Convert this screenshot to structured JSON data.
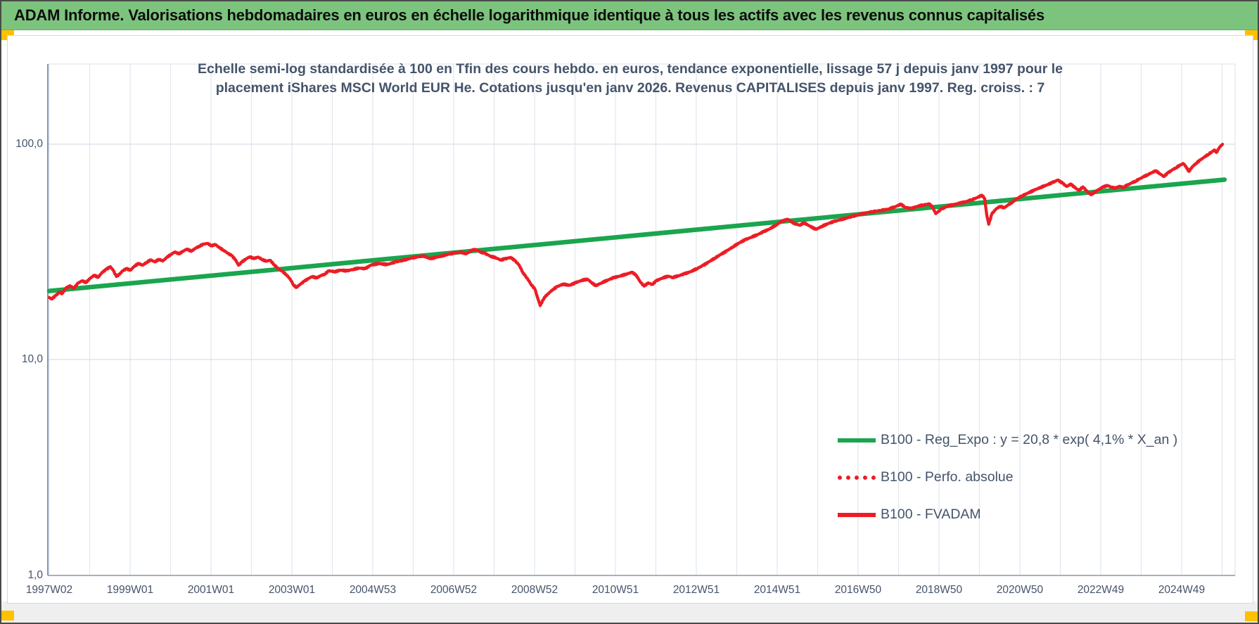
{
  "header": {
    "title": "ADAM Informe. Valorisations hebdomadaires en euros en échelle logarithmique identique à tous les actifs avec les revenus connus capitalisés"
  },
  "colors": {
    "header_bg": "#7cc47d",
    "corner_accent": "#ffc000",
    "regression_green": "#1aa54e",
    "series_red": "#ed1c24",
    "text_blue_gray": "#44546a",
    "gridline": "#e3e7ee",
    "axis_line": "#8496b0"
  },
  "chart_data": {
    "type": "line",
    "title_line1": "Echelle semi-log standardisée à 100 en Tfin des cours hebdo. en euros, tendance exponentielle, lissage 57 j depuis janv 1997 pour le",
    "title_line2": "placement iShares MSCI World EUR He. Cotations jusqu'en janv 2026. Revenus CAPITALISES depuis janv 1997. Reg. croiss. : 7",
    "x_axis": {
      "scale": "linear-weeks",
      "range_years": [
        1997.04,
        2026.35
      ],
      "gridline_every_years": 1,
      "tick_labels": [
        "1997W02",
        "1999W01",
        "2001W01",
        "2003W01",
        "2004W53",
        "2006W52",
        "2008W52",
        "2010W51",
        "2012W51",
        "2014W51",
        "2016W50",
        "2018W50",
        "2020W50",
        "2022W49",
        "2024W49"
      ],
      "tick_label_years": [
        1997.04,
        1999.04,
        2001.04,
        2003.04,
        2005.04,
        2007.04,
        2009.04,
        2011.04,
        2013.04,
        2015.04,
        2017.04,
        2019.04,
        2021.04,
        2023.04,
        2025.04
      ]
    },
    "y_axis": {
      "scale": "log10",
      "range": [
        1.0,
        232
      ],
      "gridline_values": [
        10,
        100
      ],
      "tick_values": [
        100.0,
        10.0,
        1.0
      ],
      "tick_labels": [
        "100,0",
        "10,0",
        "1,0"
      ]
    },
    "legend_position": "inside lower-right",
    "series": [
      {
        "name": "B100 - Reg_Expo : y = 20,8 * exp( 4,1% *  X_an )",
        "type": "regression-line",
        "color": "#1aa54e",
        "dash": "solid",
        "formula": {
          "coefficient": 20.8,
          "annual_growth_rate": 0.041,
          "x_start_year": 1997.04,
          "x_end_year": 2026.1
        }
      },
      {
        "name": "B100 - Perfo. absolue",
        "type": "line",
        "color": "#ed1c24",
        "dash": "dotted",
        "note": "coincides with B100 - FVADAM and is hidden beneath the solid red line"
      },
      {
        "name": "B100 - FVADAM",
        "type": "line",
        "color": "#ed1c24",
        "dash": "solid",
        "end_standardized_to": 100.0,
        "points": [
          [
            1997.04,
            19.4
          ],
          [
            1997.1,
            19.1
          ],
          [
            1997.2,
            19.8
          ],
          [
            1997.3,
            20.6
          ],
          [
            1997.35,
            20.2
          ],
          [
            1997.45,
            21.4
          ],
          [
            1997.55,
            22.0
          ],
          [
            1997.65,
            21.4
          ],
          [
            1997.75,
            22.6
          ],
          [
            1997.85,
            23.2
          ],
          [
            1997.95,
            22.8
          ],
          [
            1998.05,
            23.8
          ],
          [
            1998.15,
            24.6
          ],
          [
            1998.25,
            24.1
          ],
          [
            1998.35,
            25.4
          ],
          [
            1998.45,
            26.2
          ],
          [
            1998.55,
            27.0
          ],
          [
            1998.62,
            26.0
          ],
          [
            1998.7,
            24.3
          ],
          [
            1998.78,
            24.9
          ],
          [
            1998.85,
            25.8
          ],
          [
            1998.95,
            26.4
          ],
          [
            1999.05,
            26.0
          ],
          [
            1999.15,
            27.2
          ],
          [
            1999.25,
            27.9
          ],
          [
            1999.35,
            27.4
          ],
          [
            1999.45,
            28.3
          ],
          [
            1999.55,
            29.0
          ],
          [
            1999.65,
            28.4
          ],
          [
            1999.75,
            29.2
          ],
          [
            1999.85,
            28.7
          ],
          [
            1999.95,
            29.8
          ],
          [
            2000.05,
            30.8
          ],
          [
            2000.15,
            31.6
          ],
          [
            2000.25,
            30.9
          ],
          [
            2000.35,
            31.9
          ],
          [
            2000.45,
            32.6
          ],
          [
            2000.55,
            31.8
          ],
          [
            2000.65,
            32.8
          ],
          [
            2000.75,
            33.6
          ],
          [
            2000.85,
            34.3
          ],
          [
            2000.95,
            34.6
          ],
          [
            2001.05,
            33.8
          ],
          [
            2001.15,
            34.2
          ],
          [
            2001.25,
            33.0
          ],
          [
            2001.35,
            32.2
          ],
          [
            2001.45,
            31.2
          ],
          [
            2001.55,
            30.4
          ],
          [
            2001.65,
            29.0
          ],
          [
            2001.72,
            27.4
          ],
          [
            2001.8,
            28.3
          ],
          [
            2001.9,
            29.3
          ],
          [
            2002.0,
            30.0
          ],
          [
            2002.1,
            29.4
          ],
          [
            2002.2,
            29.9
          ],
          [
            2002.3,
            29.2
          ],
          [
            2002.4,
            28.6
          ],
          [
            2002.5,
            28.9
          ],
          [
            2002.6,
            27.6
          ],
          [
            2002.7,
            26.4
          ],
          [
            2002.8,
            25.7
          ],
          [
            2002.9,
            24.8
          ],
          [
            2003.0,
            23.6
          ],
          [
            2003.08,
            22.2
          ],
          [
            2003.15,
            21.6
          ],
          [
            2003.25,
            22.4
          ],
          [
            2003.35,
            23.1
          ],
          [
            2003.45,
            23.8
          ],
          [
            2003.55,
            24.3
          ],
          [
            2003.65,
            23.9
          ],
          [
            2003.75,
            24.5
          ],
          [
            2003.85,
            24.9
          ],
          [
            2003.95,
            25.8
          ],
          [
            2004.1,
            25.6
          ],
          [
            2004.25,
            26.0
          ],
          [
            2004.4,
            25.8
          ],
          [
            2004.55,
            26.2
          ],
          [
            2004.7,
            26.6
          ],
          [
            2004.85,
            26.4
          ],
          [
            2005.0,
            27.5
          ],
          [
            2005.2,
            27.9
          ],
          [
            2005.4,
            27.6
          ],
          [
            2005.6,
            28.4
          ],
          [
            2005.8,
            28.9
          ],
          [
            2006.0,
            29.6
          ],
          [
            2006.15,
            30.0
          ],
          [
            2006.3,
            30.3
          ],
          [
            2006.45,
            29.4
          ],
          [
            2006.6,
            29.8
          ],
          [
            2006.75,
            30.3
          ],
          [
            2006.9,
            30.8
          ],
          [
            2007.05,
            31.2
          ],
          [
            2007.2,
            31.6
          ],
          [
            2007.35,
            31.0
          ],
          [
            2007.5,
            32.2
          ],
          [
            2007.6,
            32.4
          ],
          [
            2007.7,
            31.6
          ],
          [
            2007.8,
            31.2
          ],
          [
            2007.95,
            30.2
          ],
          [
            2008.1,
            29.6
          ],
          [
            2008.2,
            29.0
          ],
          [
            2008.3,
            29.3
          ],
          [
            2008.45,
            29.8
          ],
          [
            2008.55,
            28.8
          ],
          [
            2008.65,
            27.6
          ],
          [
            2008.75,
            25.4
          ],
          [
            2008.8,
            24.6
          ],
          [
            2008.9,
            23.2
          ],
          [
            2008.95,
            22.4
          ],
          [
            2009.05,
            21.2
          ],
          [
            2009.1,
            19.8
          ],
          [
            2009.18,
            17.8
          ],
          [
            2009.28,
            19.4
          ],
          [
            2009.4,
            20.4
          ],
          [
            2009.5,
            21.2
          ],
          [
            2009.6,
            21.8
          ],
          [
            2009.75,
            22.4
          ],
          [
            2009.9,
            22.1
          ],
          [
            2010.05,
            22.7
          ],
          [
            2010.2,
            23.3
          ],
          [
            2010.35,
            23.6
          ],
          [
            2010.45,
            22.8
          ],
          [
            2010.55,
            22.0
          ],
          [
            2010.7,
            22.7
          ],
          [
            2010.85,
            23.4
          ],
          [
            2011.0,
            24.0
          ],
          [
            2011.15,
            24.4
          ],
          [
            2011.3,
            24.9
          ],
          [
            2011.45,
            25.4
          ],
          [
            2011.55,
            24.7
          ],
          [
            2011.65,
            23.0
          ],
          [
            2011.75,
            21.9
          ],
          [
            2011.85,
            22.7
          ],
          [
            2011.95,
            22.3
          ],
          [
            2012.05,
            23.2
          ],
          [
            2012.2,
            23.9
          ],
          [
            2012.35,
            24.4
          ],
          [
            2012.45,
            24.0
          ],
          [
            2012.6,
            24.5
          ],
          [
            2012.75,
            25.0
          ],
          [
            2012.9,
            25.6
          ],
          [
            2013.05,
            26.4
          ],
          [
            2013.2,
            27.3
          ],
          [
            2013.35,
            28.4
          ],
          [
            2013.5,
            29.6
          ],
          [
            2013.65,
            30.8
          ],
          [
            2013.8,
            32.0
          ],
          [
            2013.95,
            33.4
          ],
          [
            2014.1,
            34.8
          ],
          [
            2014.25,
            36.0
          ],
          [
            2014.4,
            37.0
          ],
          [
            2014.55,
            38.0
          ],
          [
            2014.7,
            39.2
          ],
          [
            2014.85,
            40.4
          ],
          [
            2015.0,
            42.0
          ],
          [
            2015.15,
            43.8
          ],
          [
            2015.3,
            44.8
          ],
          [
            2015.45,
            43.0
          ],
          [
            2015.6,
            42.0
          ],
          [
            2015.7,
            43.2
          ],
          [
            2015.85,
            41.6
          ],
          [
            2016.0,
            40.2
          ],
          [
            2016.15,
            41.6
          ],
          [
            2016.3,
            42.8
          ],
          [
            2016.45,
            43.8
          ],
          [
            2016.6,
            44.6
          ],
          [
            2016.75,
            45.4
          ],
          [
            2016.9,
            46.2
          ],
          [
            2017.05,
            47.0
          ],
          [
            2017.2,
            47.8
          ],
          [
            2017.4,
            48.6
          ],
          [
            2017.6,
            49.2
          ],
          [
            2017.8,
            50.0
          ],
          [
            2017.95,
            51.2
          ],
          [
            2018.1,
            52.6
          ],
          [
            2018.2,
            51.0
          ],
          [
            2018.35,
            50.2
          ],
          [
            2018.5,
            51.4
          ],
          [
            2018.65,
            52.2
          ],
          [
            2018.8,
            52.8
          ],
          [
            2018.88,
            51.0
          ],
          [
            2018.96,
            47.6
          ],
          [
            2019.1,
            50.0
          ],
          [
            2019.25,
            51.6
          ],
          [
            2019.4,
            52.4
          ],
          [
            2019.55,
            53.2
          ],
          [
            2019.7,
            54.0
          ],
          [
            2019.85,
            55.2
          ],
          [
            2020.0,
            56.6
          ],
          [
            2020.1,
            58.0
          ],
          [
            2020.17,
            56.0
          ],
          [
            2020.22,
            47.0
          ],
          [
            2020.27,
            42.5
          ],
          [
            2020.35,
            47.5
          ],
          [
            2020.45,
            50.0
          ],
          [
            2020.55,
            51.5
          ],
          [
            2020.65,
            50.6
          ],
          [
            2020.75,
            52.2
          ],
          [
            2020.85,
            53.8
          ],
          [
            2020.95,
            55.6
          ],
          [
            2021.1,
            57.6
          ],
          [
            2021.25,
            59.4
          ],
          [
            2021.4,
            61.2
          ],
          [
            2021.55,
            63.0
          ],
          [
            2021.7,
            64.6
          ],
          [
            2021.85,
            66.4
          ],
          [
            2021.98,
            68.2
          ],
          [
            2022.1,
            65.8
          ],
          [
            2022.2,
            63.6
          ],
          [
            2022.3,
            65.4
          ],
          [
            2022.4,
            62.8
          ],
          [
            2022.5,
            61.0
          ],
          [
            2022.6,
            63.4
          ],
          [
            2022.7,
            60.4
          ],
          [
            2022.8,
            58.2
          ],
          [
            2022.9,
            60.2
          ],
          [
            2023.0,
            61.8
          ],
          [
            2023.1,
            63.2
          ],
          [
            2023.2,
            64.4
          ],
          [
            2023.3,
            63.2
          ],
          [
            2023.4,
            62.4
          ],
          [
            2023.5,
            63.8
          ],
          [
            2023.6,
            63.0
          ],
          [
            2023.7,
            64.6
          ],
          [
            2023.8,
            66.0
          ],
          [
            2023.9,
            67.4
          ],
          [
            2024.0,
            69.0
          ],
          [
            2024.1,
            70.6
          ],
          [
            2024.2,
            72.2
          ],
          [
            2024.3,
            73.8
          ],
          [
            2024.4,
            75.2
          ],
          [
            2024.5,
            73.0
          ],
          [
            2024.6,
            70.8
          ],
          [
            2024.7,
            73.6
          ],
          [
            2024.8,
            75.8
          ],
          [
            2024.9,
            77.8
          ],
          [
            2025.0,
            79.8
          ],
          [
            2025.08,
            81.4
          ],
          [
            2025.15,
            78.6
          ],
          [
            2025.22,
            74.8
          ],
          [
            2025.3,
            78.4
          ],
          [
            2025.4,
            81.6
          ],
          [
            2025.5,
            84.4
          ],
          [
            2025.6,
            87.0
          ],
          [
            2025.7,
            89.8
          ],
          [
            2025.78,
            92.0
          ],
          [
            2025.85,
            94.0
          ],
          [
            2025.9,
            91.6
          ],
          [
            2025.96,
            95.4
          ],
          [
            2026.0,
            97.6
          ],
          [
            2026.05,
            100.0
          ]
        ]
      }
    ]
  }
}
